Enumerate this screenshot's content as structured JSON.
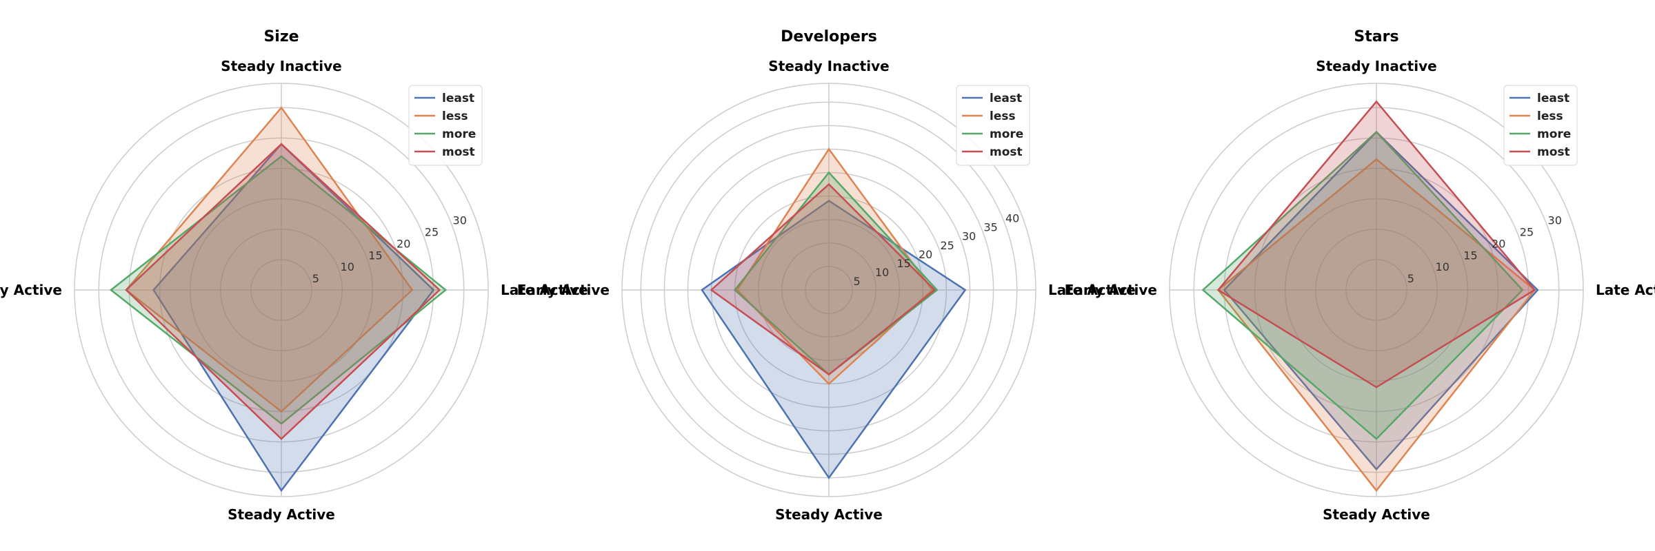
{
  "chart_data": [
    {
      "type": "radar",
      "title": "Size",
      "categories": [
        "Late Active",
        "Steady Inactive",
        "Early Active",
        "Steady Active"
      ],
      "rmax": 34,
      "rticks": [
        5,
        10,
        15,
        20,
        25,
        30
      ],
      "grid": true,
      "legend_position": "top-right",
      "series": [
        {
          "name": "least",
          "values": [
            25,
            24,
            21,
            33
          ]
        },
        {
          "name": "less",
          "values": [
            21.5,
            30,
            25.5,
            20
          ]
        },
        {
          "name": "more",
          "values": [
            27,
            22,
            28,
            22
          ]
        },
        {
          "name": "most",
          "values": [
            26,
            24,
            25.5,
            24.5
          ]
        }
      ]
    },
    {
      "type": "radar",
      "title": "Developers",
      "categories": [
        "Late Active",
        "Steady Inactive",
        "Early Active",
        "Steady Active"
      ],
      "rmax": 44,
      "rticks": [
        5,
        10,
        15,
        20,
        25,
        30,
        35,
        40
      ],
      "grid": true,
      "legend_position": "top-right",
      "series": [
        {
          "name": "least",
          "values": [
            29,
            19,
            27,
            40
          ]
        },
        {
          "name": "less",
          "values": [
            22,
            30,
            19.5,
            20
          ]
        },
        {
          "name": "more",
          "values": [
            23,
            25,
            20,
            18
          ]
        },
        {
          "name": "most",
          "values": [
            22.5,
            22.5,
            25,
            18
          ]
        }
      ]
    },
    {
      "type": "radar",
      "title": "Stars",
      "categories": [
        "Late Active",
        "Steady Inactive",
        "Early Active",
        "Steady Active"
      ],
      "rmax": 34,
      "rticks": [
        5,
        10,
        15,
        20,
        25,
        30
      ],
      "grid": true,
      "legend_position": "top-right",
      "series": [
        {
          "name": "least",
          "values": [
            26.5,
            26,
            25,
            29.5
          ]
        },
        {
          "name": "less",
          "values": [
            26,
            21.5,
            26,
            33
          ]
        },
        {
          "name": "more",
          "values": [
            24,
            26,
            28.5,
            24.5
          ]
        },
        {
          "name": "most",
          "values": [
            26,
            31,
            26,
            16
          ]
        }
      ]
    }
  ],
  "series_colors": {
    "least": "#4C72B0",
    "less": "#DD8452",
    "more": "#55A868",
    "most": "#C44E52"
  }
}
